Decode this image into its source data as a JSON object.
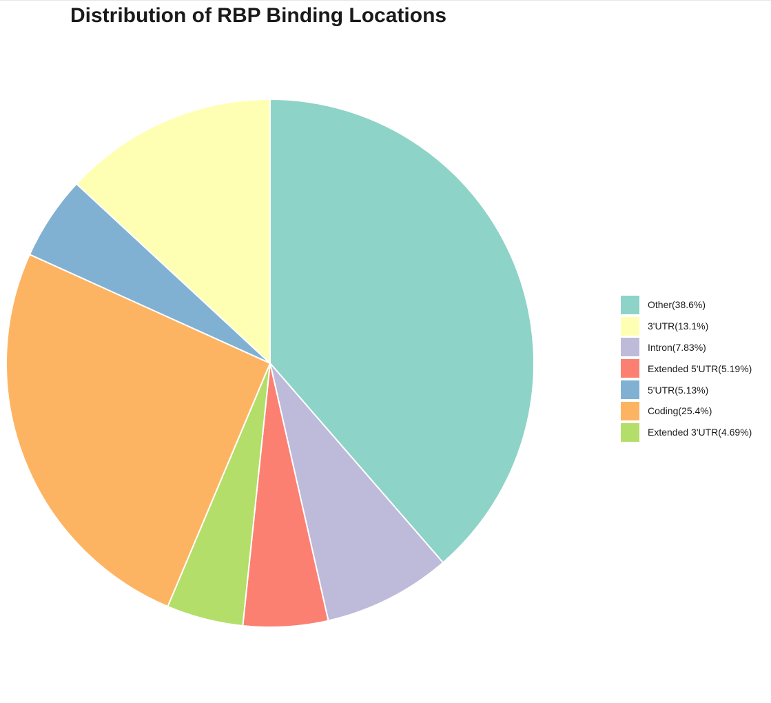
{
  "chart_data": {
    "type": "pie",
    "title": "Distribution of RBP Binding Locations",
    "start_angle": "12 o'clock",
    "direction": "clockwise",
    "legend_position": "right",
    "slices": [
      {
        "label": "Other(38.6%)",
        "value": 38.6,
        "color": "#8dd3c7"
      },
      {
        "label": "Intron(7.83%)",
        "value": 7.83,
        "color": "#bebada"
      },
      {
        "label": "Extended 5'UTR(5.19%)",
        "value": 5.19,
        "color": "#fb8072"
      },
      {
        "label": "Extended 3'UTR(4.69%)",
        "value": 4.69,
        "color": "#b3de69"
      },
      {
        "label": "Coding(25.4%)",
        "value": 25.4,
        "color": "#fdb462"
      },
      {
        "label": "5'UTR(5.13%)",
        "value": 5.13,
        "color": "#80b1d3"
      },
      {
        "label": "3'UTR(13.1%)",
        "value": 13.1,
        "color": "#ffffb3"
      }
    ],
    "legend": [
      {
        "label": "Other(38.6%)",
        "color": "#8dd3c7"
      },
      {
        "label": "3'UTR(13.1%)",
        "color": "#ffffb3"
      },
      {
        "label": "Intron(7.83%)",
        "color": "#bebada"
      },
      {
        "label": "Extended 5'UTR(5.19%)",
        "color": "#fb8072"
      },
      {
        "label": "5'UTR(5.13%)",
        "color": "#80b1d3"
      },
      {
        "label": "Coding(25.4%)",
        "color": "#fdb462"
      },
      {
        "label": "Extended 3'UTR(4.69%)",
        "color": "#b3de69"
      }
    ]
  }
}
